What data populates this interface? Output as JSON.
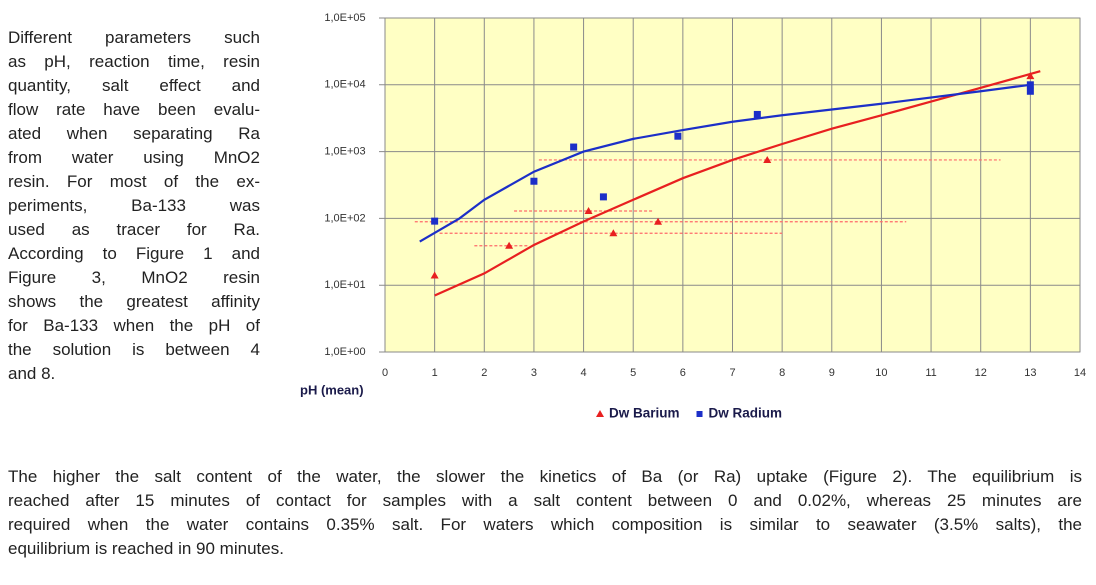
{
  "text": {
    "left_lines": [
      "Different parameters such",
      "as pH, reaction time, resin",
      "quantity, salt effect and",
      "flow rate have been evalu-",
      "ated when separating Ra",
      "from water using MnO2",
      "resin. For most of the ex-",
      "periments, Ba-133 was",
      "used as tracer for Ra.",
      "According to Figure 1 and",
      "Figure 3, MnO2 resin",
      "shows the greatest affinity",
      "for Ba-133 when the pH of",
      "the solution is between 4",
      "and 8."
    ],
    "bottom_lines": [
      "The higher the salt content of the water, the slower the kinetics of Ba (or Ra) uptake (Figure 2). The equilibrium is",
      "reached after 15 minutes of contact for samples with a salt content between 0 and 0.02%, whereas 25 minutes are",
      "required when the water contains 0.35% salt. For waters which composition is similar to seawater (3.5% salts), the",
      "equilibrium is reached in 90 minutes."
    ]
  },
  "chart_data": {
    "type": "scatter",
    "x_label": "pH (mean)",
    "xlim": [
      0,
      14
    ],
    "xticks": [
      0,
      1,
      2,
      3,
      4,
      5,
      6,
      7,
      8,
      9,
      10,
      11,
      12,
      13,
      14
    ],
    "ylim": [
      1,
      100000
    ],
    "log_y": true,
    "yticks": [
      {
        "value": 1,
        "label": "1,0E+00"
      },
      {
        "value": 10,
        "label": "1,0E+01"
      },
      {
        "value": 100,
        "label": "1,0E+02"
      },
      {
        "value": 1000,
        "label": "1,0E+03"
      },
      {
        "value": 10000,
        "label": "1,0E+04"
      },
      {
        "value": 100000,
        "label": "1,0E+05"
      }
    ],
    "grid": true,
    "plot_background": "#ffffc4",
    "legend": "bottom",
    "series": [
      {
        "name": "Dw Barium",
        "color": "#e82020",
        "marker": "triangle",
        "x": [
          1,
          2.5,
          4.1,
          4.6,
          5.5,
          7.7,
          13
        ],
        "values": [
          14,
          39,
          129,
          60,
          89,
          750,
          13500
        ],
        "x_low": [
          null,
          1.8,
          2.6,
          1.1,
          0.6,
          3.1,
          null
        ],
        "x_high": [
          null,
          2.9,
          5.4,
          8.0,
          10.5,
          12.4,
          null
        ],
        "trend": {
          "x": [
            1,
            2,
            3,
            4,
            5,
            6,
            7,
            8,
            9,
            10,
            11,
            12,
            13.2
          ],
          "values": [
            7,
            15,
            40,
            90,
            190,
            400,
            750,
            1300,
            2200,
            3500,
            5600,
            9000,
            16000
          ]
        }
      },
      {
        "name": "Dw Radium",
        "color": "#1c2fc8",
        "marker": "square",
        "x": [
          1,
          3,
          3.8,
          4.4,
          5.9,
          7.5,
          13,
          13
        ],
        "values": [
          91,
          360,
          1170,
          210,
          1700,
          3600,
          8000,
          10000
        ],
        "trend": {
          "x": [
            0.7,
            1.5,
            2,
            3,
            4,
            5,
            6,
            7,
            8,
            10,
            12,
            13
          ],
          "values": [
            45,
            100,
            190,
            500,
            1000,
            1550,
            2100,
            2800,
            3500,
            5200,
            8000,
            10000
          ]
        }
      }
    ]
  }
}
